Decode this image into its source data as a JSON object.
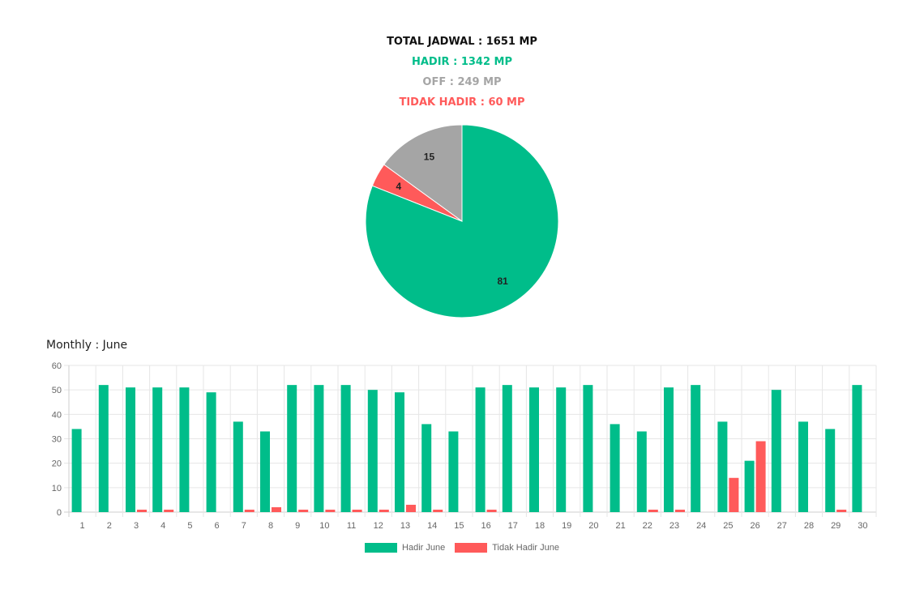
{
  "summary": {
    "total": "TOTAL JADWAL : 1651 MP",
    "hadir": "HADIR : 1342 MP",
    "off": "OFF : 249 MP",
    "tidak_hadir": "TIDAK HADIR : 60 MP"
  },
  "colors": {
    "hadir": "#00bd8a",
    "off": "#a5a5a5",
    "tidak_hadir": "#ff5a5a"
  },
  "monthly_title": "Monthly : June",
  "chart_data": [
    {
      "type": "pie",
      "slices": [
        {
          "label": "",
          "value": 81,
          "color_key": "hadir"
        },
        {
          "label": "",
          "value": 4,
          "color_key": "tidak_hadir"
        },
        {
          "label": "",
          "value": 15,
          "color_key": "off"
        }
      ]
    },
    {
      "type": "bar",
      "categories": [
        "1",
        "2",
        "3",
        "4",
        "5",
        "6",
        "7",
        "8",
        "9",
        "10",
        "11",
        "12",
        "13",
        "14",
        "15",
        "16",
        "17",
        "18",
        "19",
        "20",
        "21",
        "22",
        "23",
        "24",
        "25",
        "26",
        "27",
        "28",
        "29",
        "30"
      ],
      "series": [
        {
          "name": "Hadir June",
          "color_key": "hadir",
          "values": [
            34,
            52,
            51,
            51,
            51,
            49,
            37,
            33,
            52,
            52,
            52,
            50,
            49,
            36,
            33,
            51,
            52,
            51,
            51,
            52,
            36,
            33,
            51,
            52,
            37,
            21,
            50,
            37,
            34,
            52
          ]
        },
        {
          "name": "Tidak Hadir June",
          "color_key": "tidak_hadir",
          "values": [
            0,
            0,
            1,
            1,
            0,
            0,
            1,
            2,
            1,
            1,
            1,
            1,
            3,
            1,
            0,
            1,
            0,
            0,
            0,
            0,
            0,
            1,
            1,
            0,
            14,
            29,
            0,
            0,
            1,
            0
          ]
        }
      ],
      "yticks": [
        0,
        10,
        20,
        30,
        40,
        50,
        60
      ],
      "ylim": [
        0,
        60
      ],
      "grid": true,
      "legend_position": "bottom"
    }
  ]
}
